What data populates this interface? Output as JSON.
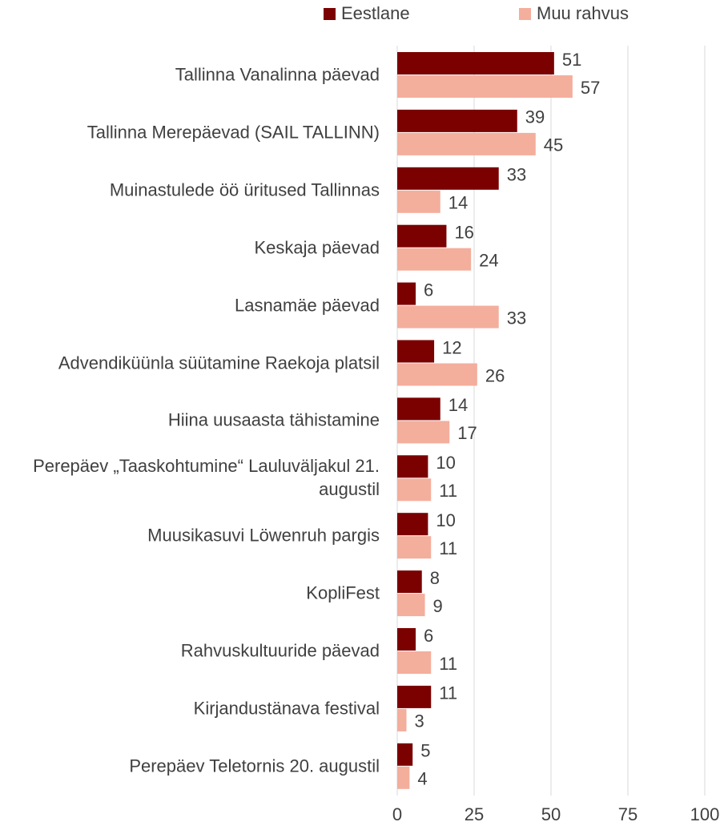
{
  "chart_data": {
    "type": "barh",
    "categories": [
      "Tallinna Vanalinna päevad",
      "Tallinna Merepäevad (SAIL TALLINN)",
      "Muinastulede öö üritused Tallinnas",
      "Keskaja päevad",
      "Lasnamäe päevad",
      "Advendiküünla süütamine Raekoja platsil",
      "Hiina uusaasta tähistamine",
      "Perepäev „Taaskohtumine“ Lauluväljakul 21. augustil",
      "Muusikasuvi Löwenruh pargis",
      "KopliFest",
      "Rahvuskultuuride päevad",
      "Kirjandustänava festival",
      "Perepäev Teletornis 20. augustil"
    ],
    "series": [
      {
        "name": "Eestlane",
        "color": "#7b0000",
        "values": [
          51,
          39,
          33,
          16,
          6,
          12,
          14,
          10,
          10,
          8,
          6,
          11,
          5
        ]
      },
      {
        "name": "Muu rahvus",
        "color": "#f4ae9c",
        "values": [
          57,
          45,
          14,
          24,
          33,
          26,
          17,
          11,
          11,
          9,
          11,
          3,
          4
        ]
      }
    ],
    "xlim": [
      0,
      100
    ],
    "xticks": [
      0,
      25,
      50,
      75,
      100
    ],
    "grid": true,
    "legend": "top"
  }
}
